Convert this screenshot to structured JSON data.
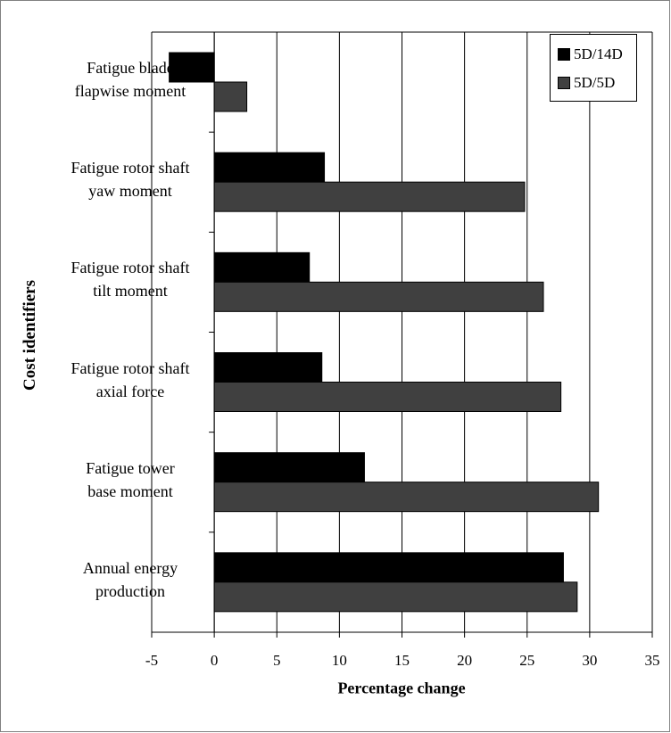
{
  "chart_data": {
    "type": "bar",
    "orientation": "horizontal",
    "title": "",
    "xlabel": "Percentage change",
    "ylabel": "Cost identifiers",
    "xlim": [
      -5,
      35
    ],
    "xticks": [
      "-5",
      "0",
      "5",
      "10",
      "15",
      "20",
      "25",
      "30",
      "35"
    ],
    "grid": true,
    "legend_position": "top-right",
    "categories": [
      "Fatigue blade\nflapwise moment",
      "Fatigue rotor shaft\nyaw moment",
      "Fatigue rotor shaft\ntilt moment",
      "Fatigue rotor shaft\naxial force",
      "Fatigue tower\nbase moment",
      "Annual energy\nproduction"
    ],
    "series": [
      {
        "name": "5D/14D",
        "color": "#000000",
        "values": [
          -3.6,
          8.8,
          7.6,
          8.6,
          12.0,
          27.9
        ]
      },
      {
        "name": "5D/5D",
        "color": "#404040",
        "values": [
          2.6,
          24.8,
          26.3,
          27.7,
          30.7,
          29.0
        ]
      }
    ]
  }
}
